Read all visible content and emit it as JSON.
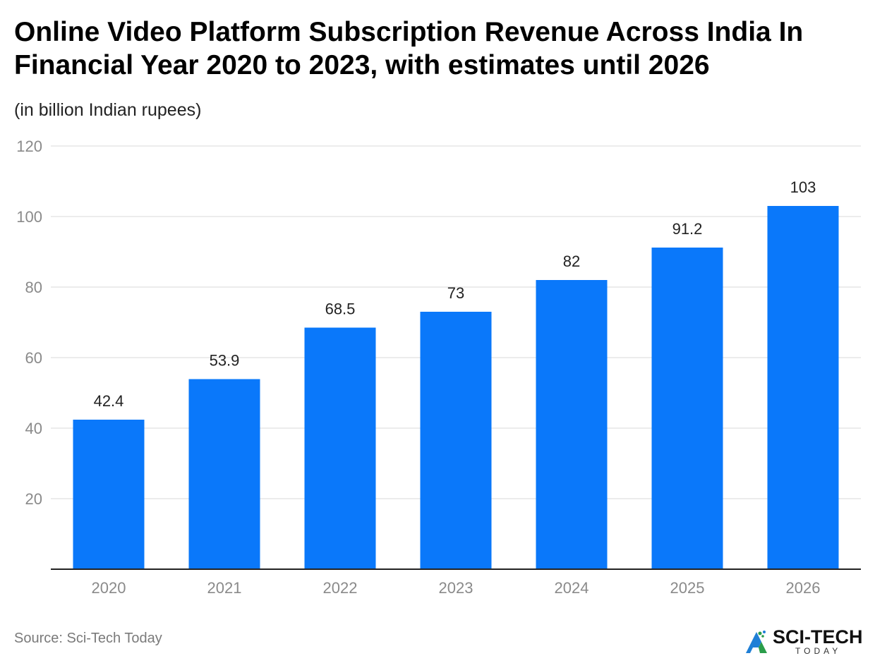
{
  "title": "Online Video Platform Subscription Revenue Across India In Financial Year 2020 to 2023, with estimates until 2026",
  "subtitle": "(in billion Indian rupees)",
  "source": "Source: Sci-Tech Today",
  "logo": {
    "text": "SCI-TECH",
    "sub": "TODAY"
  },
  "colors": {
    "bar": "#0a78fa",
    "grid": "#e0e0e0",
    "axis": "#222222",
    "tick": "#8a8a8a"
  },
  "chart_data": {
    "type": "bar",
    "categories": [
      "2020",
      "2021",
      "2022",
      "2023",
      "2024",
      "2025",
      "2026"
    ],
    "values": [
      42.4,
      53.9,
      68.5,
      73,
      82,
      91.2,
      103
    ],
    "value_labels": [
      "42.4",
      "53.9",
      "68.5",
      "73",
      "82",
      "91.2",
      "103"
    ],
    "yticks": [
      "20",
      "40",
      "60",
      "80",
      "100",
      "120"
    ],
    "ylim": [
      0,
      120
    ],
    "grid": true
  }
}
